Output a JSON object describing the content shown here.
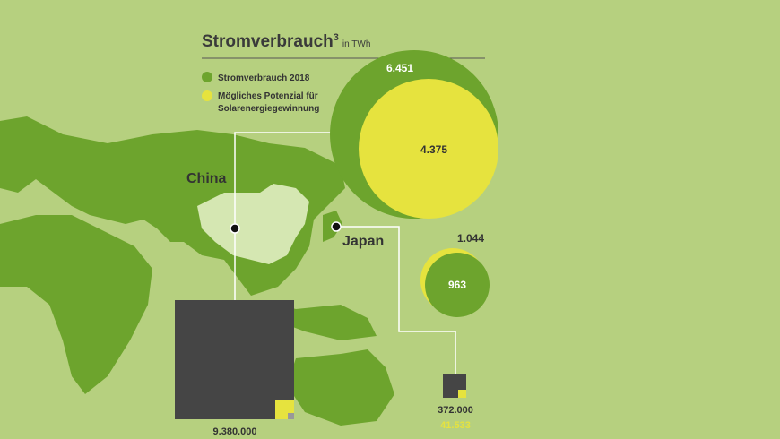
{
  "title": "Stromverbrauch",
  "title_superscript": "3",
  "unit": "in TWh",
  "legend": [
    {
      "label": "Stromverbrauch 2018"
    },
    {
      "label_lines": [
        "Mögliches Potenzial für",
        "Solarenergiegewinnung"
      ]
    }
  ],
  "countries": [
    {
      "name": "China",
      "consumption": "6.451",
      "solar_potential": "4.375",
      "area_value": "9.380.000"
    },
    {
      "name": "Japan",
      "consumption": "1.044",
      "solar_potential": "963",
      "area_value": "372.000",
      "area_value_2": "41.533"
    }
  ]
}
